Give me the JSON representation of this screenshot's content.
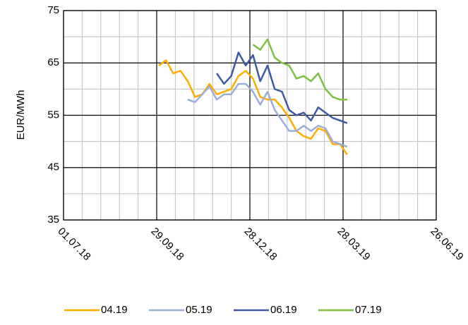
{
  "chart_data": {
    "type": "line",
    "y_label": "EUR/MWh",
    "x": [
      "01.10.18",
      "08.10.18",
      "15.10.18",
      "22.10.18",
      "29.10.18",
      "05.11.18",
      "12.11.18",
      "19.11.18",
      "26.11.18",
      "03.12.18",
      "10.12.18",
      "17.12.18",
      "24.12.18",
      "31.12.18",
      "07.01.19",
      "14.01.19",
      "21.01.19",
      "28.01.19",
      "04.02.19",
      "11.02.19",
      "18.02.19",
      "25.02.19",
      "04.03.19",
      "11.03.19",
      "18.03.19",
      "25.03.19",
      "01.04.19"
    ],
    "series": [
      {
        "name": "04.19",
        "color": "#ffad00",
        "values": [
          64.5,
          65.5,
          63,
          63.5,
          61.5,
          58.5,
          59,
          61,
          59,
          59.5,
          60,
          62.5,
          63.5,
          62,
          58.5,
          58,
          58,
          56.5,
          54.5,
          52,
          51,
          50.5,
          52.5,
          52,
          49.5,
          49.5,
          47.5
        ]
      },
      {
        "name": "05.19",
        "color": "#9aaed8",
        "values": [
          null,
          null,
          null,
          null,
          58,
          57.5,
          59,
          60.5,
          58,
          59,
          59,
          61,
          61,
          59.5,
          57,
          59.5,
          56,
          54,
          52,
          52,
          53,
          52,
          53,
          52.5,
          50,
          49.5,
          49
        ]
      },
      {
        "name": "06.19",
        "color": "#3d5aa3",
        "values": [
          null,
          null,
          null,
          null,
          null,
          null,
          null,
          null,
          63,
          61,
          62.5,
          67,
          64.5,
          66.5,
          61.5,
          64.5,
          60,
          59.5,
          56,
          55,
          55.5,
          54,
          56.5,
          55.5,
          54.5,
          54,
          53.5
        ]
      },
      {
        "name": "07.19",
        "color": "#7dc142",
        "values": [
          null,
          null,
          null,
          null,
          null,
          null,
          null,
          null,
          null,
          null,
          null,
          null,
          null,
          68.5,
          67.5,
          69.5,
          66,
          65,
          64.5,
          62,
          62.5,
          61.5,
          63,
          60,
          58.5,
          58,
          58
        ]
      }
    ],
    "xlim": [
      "01.07.18",
      "26.06.19"
    ],
    "xticks": [
      "01.07.18",
      "29.09.18",
      "28.12.18",
      "28.03.19",
      "26.06.19"
    ],
    "ylim": [
      35,
      75
    ],
    "yticks": [
      35,
      45,
      55,
      65,
      75
    ],
    "grid": true,
    "minor_grid": true,
    "legend": "bottom"
  }
}
